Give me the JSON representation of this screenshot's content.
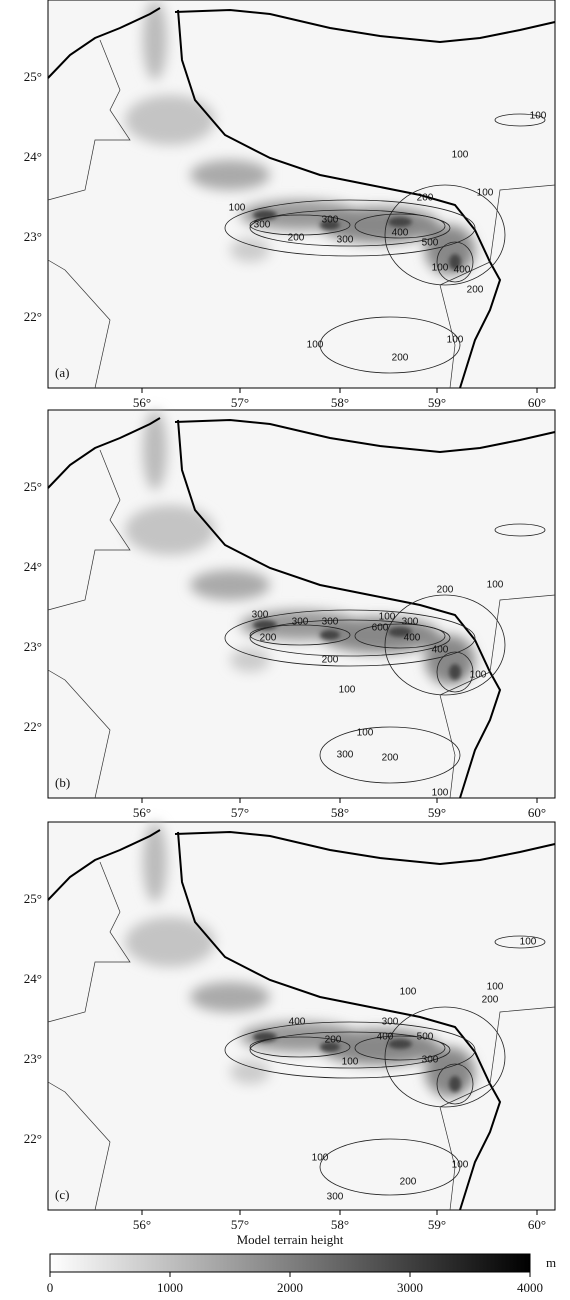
{
  "panels": [
    {
      "label": "(a)",
      "contour_labels": [
        "100",
        "100",
        "100",
        "200",
        "100",
        "300",
        "300",
        "200",
        "300",
        "400",
        "500",
        "100",
        "400",
        "200",
        "100",
        "200",
        "100"
      ]
    },
    {
      "label": "(b)",
      "contour_labels": [
        "100",
        "200",
        "300",
        "300",
        "300",
        "100",
        "300",
        "200",
        "600",
        "400",
        "200",
        "400",
        "100",
        "100",
        "100",
        "300",
        "200",
        "100"
      ]
    },
    {
      "label": "(c)",
      "contour_labels": [
        "100",
        "100",
        "100",
        "200",
        "400",
        "300",
        "400",
        "200",
        "500",
        "100",
        "300",
        "100",
        "200",
        "300",
        "100"
      ]
    }
  ],
  "lat_labels": [
    "25°",
    "24°",
    "23°",
    "22°"
  ],
  "lon_labels": [
    "56°",
    "57°",
    "58°",
    "59°",
    "60°"
  ],
  "colorbar": {
    "title": "Model terrain height",
    "unit": "m",
    "range": [
      0,
      4000
    ],
    "ticks": [
      0,
      1000,
      2000,
      3000,
      4000
    ]
  }
}
